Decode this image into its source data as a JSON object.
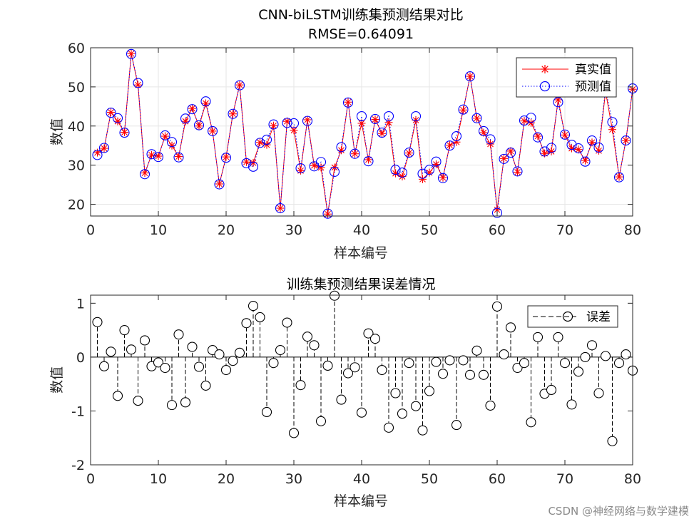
{
  "watermark": "CSDN @神经网络与数学建模",
  "colors": {
    "truth": "#ff0000",
    "pred": "#0000ff",
    "error": "#000000",
    "grid": "#e6e6e6",
    "axis": "#262626"
  },
  "chart_data": [
    {
      "type": "line",
      "title": "CNN-biLSTM训练集预测结果对比",
      "subtitle": "RMSE=0.64091",
      "xlabel": "样本编号",
      "ylabel": "数值",
      "xlim": [
        0,
        80
      ],
      "ylim": [
        17,
        60
      ],
      "xticks": [
        0,
        10,
        20,
        30,
        40,
        50,
        60,
        70,
        80
      ],
      "yticks": [
        20,
        30,
        40,
        50,
        60
      ],
      "grid": true,
      "legend_position": "top-right",
      "x": [
        1,
        2,
        3,
        4,
        5,
        6,
        7,
        8,
        9,
        10,
        11,
        12,
        13,
        14,
        15,
        16,
        17,
        18,
        19,
        20,
        21,
        22,
        23,
        24,
        25,
        26,
        27,
        28,
        29,
        30,
        31,
        32,
        33,
        34,
        35,
        36,
        37,
        38,
        39,
        40,
        41,
        42,
        43,
        44,
        45,
        46,
        47,
        48,
        49,
        50,
        51,
        52,
        53,
        54,
        55,
        56,
        57,
        58,
        59,
        60,
        61,
        62,
        63,
        64,
        65,
        66,
        67,
        68,
        69,
        70,
        71,
        72,
        73,
        74,
        75,
        76,
        77,
        78,
        79,
        80
      ],
      "series": [
        {
          "name": "真实值",
          "style": "red-star-line",
          "values": [
            33.2,
            34.3,
            43.5,
            41.2,
            38.4,
            58.5,
            50.5,
            28.0,
            32.6,
            32.3,
            37.4,
            35.0,
            32.2,
            41.2,
            44.5,
            40.0,
            45.8,
            38.7,
            25.2,
            32.1,
            43.1,
            50.5,
            30.8,
            30.6,
            35.8,
            35.2,
            40.1,
            19.0,
            41.2,
            38.9,
            28.6,
            41.6,
            29.9,
            29.4,
            17.5,
            29.4,
            33.8,
            46.1,
            32.9,
            40.7,
            31.4,
            41.7,
            38.1,
            40.9,
            27.9,
            27.1,
            33.1,
            41.5,
            26.4,
            28.1,
            30.2,
            26.8,
            35.1,
            35.9,
            44.1,
            52.7,
            42.0,
            38.3,
            35.4,
            18.6,
            31.7,
            33.6,
            28.2,
            41.3,
            40.8,
            37.4,
            33.0,
            33.5,
            46.7,
            37.7,
            34.3,
            34.0,
            31.2,
            35.8,
            33.7,
            48.8,
            39.1,
            27.0,
            36.3,
            49.4
          ]
        },
        {
          "name": "预测值",
          "style": "blue-circle-dotted",
          "values": [
            32.6,
            34.4,
            43.4,
            42.0,
            38.3,
            58.4,
            51.0,
            27.7,
            32.8,
            32.1,
            37.6,
            35.9,
            32.0,
            41.9,
            44.3,
            40.2,
            46.3,
            38.7,
            25.1,
            31.9,
            43.1,
            50.4,
            30.5,
            29.6,
            35.7,
            36.5,
            40.4,
            19.0,
            40.8,
            40.7,
            29.2,
            41.3,
            29.7,
            30.8,
            17.6,
            28.3,
            34.6,
            46.0,
            32.9,
            42.5,
            31.0,
            41.8,
            38.3,
            42.5,
            28.8,
            28.1,
            33.2,
            42.5,
            27.8,
            28.8,
            30.9,
            26.7,
            35.0,
            37.4,
            44.2,
            52.7,
            42.0,
            38.7,
            36.6,
            17.8,
            31.6,
            33.2,
            28.4,
            41.4,
            42.1,
            37.1,
            33.5,
            34.4,
            46.1,
            37.8,
            35.2,
            34.3,
            30.9,
            36.3,
            34.5,
            49.5,
            41.0,
            26.9,
            36.3,
            49.6
          ]
        }
      ]
    },
    {
      "type": "stem",
      "title": "训练集预测结果误差情况",
      "xlabel": "样本编号",
      "ylabel": "数值",
      "xlim": [
        0,
        80
      ],
      "ylim": [
        -2,
        1.15
      ],
      "xticks": [
        0,
        10,
        20,
        30,
        40,
        50,
        60,
        70,
        80
      ],
      "yticks": [
        -2,
        -1,
        0,
        1
      ],
      "legend_position": "top-right",
      "x": [
        1,
        2,
        3,
        4,
        5,
        6,
        7,
        8,
        9,
        10,
        11,
        12,
        13,
        14,
        15,
        16,
        17,
        18,
        19,
        20,
        21,
        22,
        23,
        24,
        25,
        26,
        27,
        28,
        29,
        30,
        31,
        32,
        33,
        34,
        35,
        36,
        37,
        38,
        39,
        40,
        41,
        42,
        43,
        44,
        45,
        46,
        47,
        48,
        49,
        50,
        51,
        52,
        53,
        54,
        55,
        56,
        57,
        58,
        59,
        60,
        61,
        62,
        63,
        64,
        65,
        66,
        67,
        68,
        69,
        70,
        71,
        72,
        73,
        74,
        75,
        76,
        77,
        78,
        79,
        80
      ],
      "series": [
        {
          "name": "误差",
          "style": "black-dashed-stem-circle",
          "values": [
            0.65,
            -0.17,
            0.1,
            -0.72,
            0.5,
            0.14,
            -0.81,
            0.31,
            -0.17,
            -0.1,
            -0.2,
            -0.89,
            0.42,
            -0.84,
            0.19,
            -0.18,
            -0.53,
            0.13,
            0.05,
            -0.24,
            -0.07,
            0.08,
            0.63,
            0.95,
            0.74,
            -1.02,
            -0.11,
            0.13,
            0.64,
            -1.41,
            -0.52,
            0.38,
            0.22,
            -1.19,
            -0.16,
            1.14,
            -0.79,
            -0.3,
            -0.19,
            -1.03,
            0.44,
            0.34,
            -0.24,
            -1.31,
            -0.67,
            -1.05,
            -0.11,
            -0.91,
            -1.36,
            -0.63,
            -0.09,
            -0.31,
            -0.06,
            -1.26,
            -0.06,
            -0.33,
            0.12,
            -0.33,
            -0.9,
            0.94,
            0.05,
            0.55,
            -0.2,
            -0.11,
            -1.21,
            0.37,
            -0.68,
            -0.61,
            0.37,
            -0.11,
            -0.88,
            -0.27,
            0.0,
            0.22,
            -0.67,
            0.02,
            -1.56,
            -0.11,
            0.05,
            -0.25
          ]
        }
      ]
    }
  ]
}
